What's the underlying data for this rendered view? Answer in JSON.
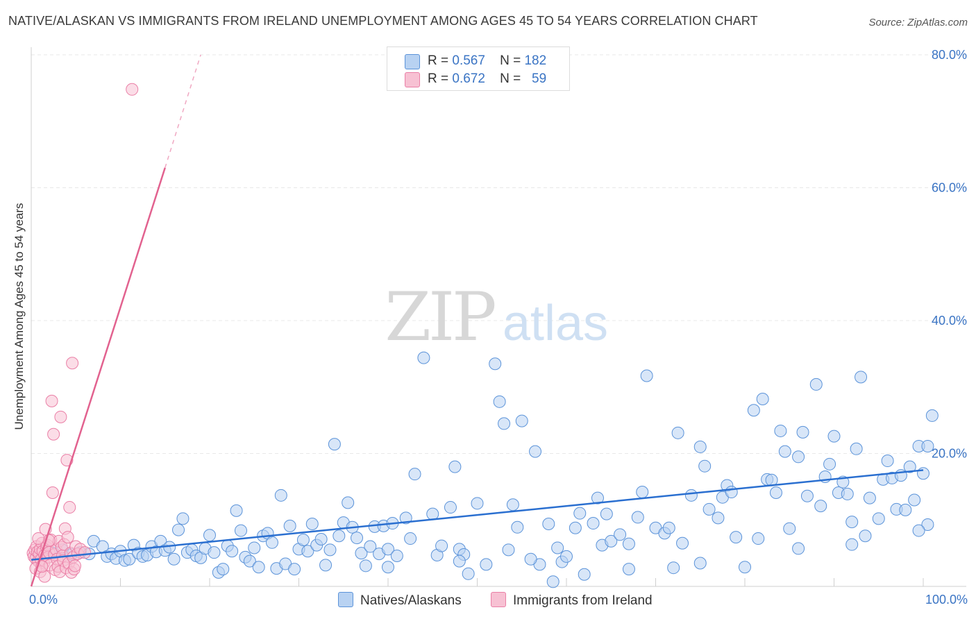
{
  "title": "NATIVE/ALASKAN VS IMMIGRANTS FROM IRELAND UNEMPLOYMENT AMONG AGES 45 TO 54 YEARS CORRELATION CHART",
  "source": "Source: ZipAtlas.com",
  "watermark": {
    "zip": "ZIP",
    "atlas": "atlas"
  },
  "legend": {
    "rows": [
      {
        "r_label": "R =",
        "r_value": "0.567",
        "n_label": "N =",
        "n_value": "182"
      },
      {
        "r_label": "R =",
        "r_value": "0.672",
        "n_label": "N =",
        "n_value": "59"
      }
    ]
  },
  "colors": {
    "blue_fill": "#b8d2f2",
    "blue_stroke": "#5b93d9",
    "blue_line": "#2a6fd0",
    "pink_fill": "#f7c1d3",
    "pink_stroke": "#ea7fa6",
    "pink_line": "#e2628f",
    "tick_label": "#3a74c4",
    "grid": "#e8e8e8"
  },
  "chart_data": {
    "type": "scatter",
    "title": "NATIVE/ALASKAN VS IMMIGRANTS FROM IRELAND UNEMPLOYMENT AMONG AGES 45 TO 54 YEARS CORRELATION CHART",
    "xlabel": "",
    "ylabel": "Unemployment Among Ages 45 to 54 years",
    "xlim": [
      0,
      100
    ],
    "ylim": [
      0,
      80
    ],
    "x_tick_labels": [
      {
        "value": 0,
        "label": "0.0%"
      },
      {
        "value": 100,
        "label": "100.0%"
      }
    ],
    "y_tick_labels": [
      {
        "value": 20,
        "label": "20.0%"
      },
      {
        "value": 40,
        "label": "40.0%"
      },
      {
        "value": 60,
        "label": "60.0%"
      },
      {
        "value": 80,
        "label": "80.0%"
      }
    ],
    "series": [
      {
        "name": "Natives/Alaskans",
        "R": 0.567,
        "N": 182,
        "trend": {
          "x0": 0,
          "y0": 4.0,
          "x1": 100,
          "y1": 17.5
        },
        "points": [
          [
            1.2,
            5.2
          ],
          [
            2.5,
            5.0
          ],
          [
            3.5,
            5.5
          ],
          [
            4.5,
            4.8
          ],
          [
            5.5,
            5.1
          ],
          [
            6.5,
            4.9
          ],
          [
            7.0,
            6.8
          ],
          [
            8.0,
            6.0
          ],
          [
            8.5,
            4.5
          ],
          [
            9.0,
            4.9
          ],
          [
            9.5,
            4.2
          ],
          [
            10.0,
            5.3
          ],
          [
            10.5,
            3.9
          ],
          [
            11.0,
            4.1
          ],
          [
            11.5,
            6.2
          ],
          [
            12.0,
            5.0
          ],
          [
            12.5,
            4.5
          ],
          [
            13.0,
            4.7
          ],
          [
            13.5,
            6.0
          ],
          [
            14.0,
            5.2
          ],
          [
            14.5,
            6.8
          ],
          [
            15.0,
            5.4
          ],
          [
            15.5,
            5.9
          ],
          [
            16.0,
            4.1
          ],
          [
            16.5,
            8.5
          ],
          [
            17.0,
            10.2
          ],
          [
            17.5,
            5.1
          ],
          [
            18.0,
            5.5
          ],
          [
            18.5,
            4.6
          ],
          [
            19.0,
            4.3
          ],
          [
            19.5,
            5.7
          ],
          [
            20.0,
            7.7
          ],
          [
            20.5,
            5.1
          ],
          [
            21.0,
            2.1
          ],
          [
            21.5,
            2.6
          ],
          [
            22.0,
            6.1
          ],
          [
            22.5,
            5.3
          ],
          [
            23.0,
            11.4
          ],
          [
            23.5,
            8.4
          ],
          [
            24.0,
            4.4
          ],
          [
            24.5,
            3.8
          ],
          [
            25.0,
            5.8
          ],
          [
            25.5,
            2.9
          ],
          [
            26.0,
            7.6
          ],
          [
            26.5,
            8.0
          ],
          [
            27.0,
            6.6
          ],
          [
            27.5,
            2.7
          ],
          [
            28.0,
            13.7
          ],
          [
            28.5,
            3.4
          ],
          [
            29.0,
            9.1
          ],
          [
            29.5,
            2.6
          ],
          [
            30.0,
            5.6
          ],
          [
            30.5,
            7.0
          ],
          [
            31.0,
            5.3
          ],
          [
            31.5,
            9.4
          ],
          [
            32.0,
            6.2
          ],
          [
            32.5,
            7.1
          ],
          [
            33.0,
            3.2
          ],
          [
            33.5,
            5.5
          ],
          [
            34.0,
            21.4
          ],
          [
            34.5,
            7.6
          ],
          [
            35.0,
            9.6
          ],
          [
            35.5,
            12.6
          ],
          [
            36.0,
            8.9
          ],
          [
            36.5,
            7.3
          ],
          [
            37.0,
            5.0
          ],
          [
            37.5,
            3.1
          ],
          [
            38.0,
            6.0
          ],
          [
            38.5,
            9.0
          ],
          [
            39.0,
            4.9
          ],
          [
            39.5,
            9.1
          ],
          [
            40.0,
            5.6
          ],
          [
            40.5,
            9.5
          ],
          [
            41.0,
            4.6
          ],
          [
            42.0,
            10.3
          ],
          [
            42.5,
            7.2
          ],
          [
            43.0,
            16.9
          ],
          [
            44.0,
            34.4
          ],
          [
            45.0,
            10.9
          ],
          [
            45.5,
            4.7
          ],
          [
            46.0,
            6.1
          ],
          [
            47.0,
            11.9
          ],
          [
            47.5,
            18.0
          ],
          [
            48.0,
            5.6
          ],
          [
            48.5,
            4.8
          ],
          [
            49.0,
            1.9
          ],
          [
            50.0,
            12.5
          ],
          [
            51.0,
            3.3
          ],
          [
            52.0,
            33.5
          ],
          [
            52.5,
            27.8
          ],
          [
            53.0,
            24.5
          ],
          [
            53.5,
            5.5
          ],
          [
            54.0,
            12.3
          ],
          [
            54.5,
            8.9
          ],
          [
            55.0,
            24.9
          ],
          [
            56.5,
            20.3
          ],
          [
            57.0,
            3.3
          ],
          [
            58.0,
            9.4
          ],
          [
            58.5,
            0.7
          ],
          [
            59.0,
            5.8
          ],
          [
            59.5,
            3.7
          ],
          [
            60.0,
            4.5
          ],
          [
            61.0,
            8.8
          ],
          [
            61.5,
            11.0
          ],
          [
            62.0,
            1.8
          ],
          [
            63.0,
            9.5
          ],
          [
            63.5,
            13.3
          ],
          [
            64.0,
            6.2
          ],
          [
            64.5,
            10.9
          ],
          [
            65.0,
            6.8
          ],
          [
            66.0,
            7.8
          ],
          [
            67.0,
            6.4
          ],
          [
            68.0,
            10.4
          ],
          [
            68.5,
            14.2
          ],
          [
            69.0,
            31.7
          ],
          [
            70.0,
            8.8
          ],
          [
            71.0,
            8.0
          ],
          [
            71.5,
            8.8
          ],
          [
            72.0,
            2.8
          ],
          [
            72.5,
            23.1
          ],
          [
            73.0,
            6.5
          ],
          [
            74.0,
            13.7
          ],
          [
            75.0,
            21.0
          ],
          [
            75.5,
            18.1
          ],
          [
            76.0,
            11.6
          ],
          [
            77.0,
            10.3
          ],
          [
            77.5,
            13.4
          ],
          [
            78.0,
            15.2
          ],
          [
            78.5,
            14.2
          ],
          [
            79.0,
            7.4
          ],
          [
            80.0,
            2.9
          ],
          [
            81.0,
            26.5
          ],
          [
            81.5,
            7.2
          ],
          [
            82.0,
            28.2
          ],
          [
            82.5,
            16.1
          ],
          [
            83.0,
            16.0
          ],
          [
            83.5,
            14.1
          ],
          [
            84.0,
            23.4
          ],
          [
            84.5,
            20.3
          ],
          [
            85.0,
            8.7
          ],
          [
            86.0,
            19.5
          ],
          [
            86.5,
            23.2
          ],
          [
            87.0,
            13.6
          ],
          [
            88.0,
            30.4
          ],
          [
            88.5,
            12.1
          ],
          [
            89.0,
            16.5
          ],
          [
            89.5,
            18.4
          ],
          [
            90.0,
            22.6
          ],
          [
            90.5,
            14.1
          ],
          [
            91.0,
            15.7
          ],
          [
            91.5,
            13.9
          ],
          [
            92.0,
            9.7
          ],
          [
            92.5,
            20.7
          ],
          [
            93.0,
            31.5
          ],
          [
            93.5,
            7.6
          ],
          [
            94.0,
            13.3
          ],
          [
            95.0,
            10.2
          ],
          [
            95.5,
            16.1
          ],
          [
            96.0,
            18.9
          ],
          [
            96.5,
            16.3
          ],
          [
            97.0,
            11.6
          ],
          [
            97.5,
            16.7
          ],
          [
            98.0,
            11.5
          ],
          [
            98.5,
            18.0
          ],
          [
            99.0,
            13.0
          ],
          [
            99.5,
            21.1
          ],
          [
            100.0,
            17.0
          ],
          [
            100.5,
            21.1
          ],
          [
            101.0,
            25.7
          ],
          [
            100.5,
            9.3
          ],
          [
            99.5,
            8.4
          ],
          [
            92.0,
            6.3
          ],
          [
            86.0,
            5.7
          ],
          [
            75.0,
            3.5
          ],
          [
            67.0,
            2.6
          ],
          [
            56.0,
            4.1
          ],
          [
            48.0,
            3.8
          ],
          [
            40.0,
            2.9
          ]
        ]
      },
      {
        "name": "Immigrants from Ireland",
        "R": 0.672,
        "N": 59,
        "trend": {
          "x0": 0,
          "y0": 0,
          "x1": 15,
          "y1": 63,
          "dash_to_x": 19,
          "dash_to_y": 80
        },
        "points": [
          [
            0.2,
            5.0
          ],
          [
            0.3,
            4.5
          ],
          [
            0.4,
            5.5
          ],
          [
            0.5,
            4.2
          ],
          [
            0.6,
            6.0
          ],
          [
            0.7,
            5.2
          ],
          [
            0.8,
            3.8
          ],
          [
            0.9,
            4.9
          ],
          [
            1.0,
            5.6
          ],
          [
            1.1,
            4.0
          ],
          [
            1.2,
            6.5
          ],
          [
            1.3,
            5.3
          ],
          [
            1.4,
            3.5
          ],
          [
            1.5,
            4.7
          ],
          [
            1.6,
            8.6
          ],
          [
            1.7,
            5.9
          ],
          [
            1.8,
            6.2
          ],
          [
            1.9,
            4.4
          ],
          [
            2.0,
            5.1
          ],
          [
            2.1,
            3.2
          ],
          [
            2.2,
            7.0
          ],
          [
            2.3,
            27.9
          ],
          [
            2.4,
            14.1
          ],
          [
            2.5,
            22.9
          ],
          [
            2.6,
            4.8
          ],
          [
            2.7,
            2.5
          ],
          [
            2.8,
            5.5
          ],
          [
            2.9,
            4.1
          ],
          [
            3.0,
            3.0
          ],
          [
            3.1,
            6.8
          ],
          [
            3.2,
            2.2
          ],
          [
            3.3,
            25.5
          ],
          [
            3.4,
            5.9
          ],
          [
            3.5,
            4.6
          ],
          [
            3.6,
            3.9
          ],
          [
            3.7,
            6.3
          ],
          [
            3.8,
            8.7
          ],
          [
            3.9,
            2.8
          ],
          [
            4.0,
            19.0
          ],
          [
            4.1,
            7.4
          ],
          [
            4.2,
            3.5
          ],
          [
            4.3,
            11.9
          ],
          [
            4.4,
            5.0
          ],
          [
            4.5,
            2.1
          ],
          [
            4.6,
            33.6
          ],
          [
            4.7,
            4.4
          ],
          [
            4.8,
            2.6
          ],
          [
            4.9,
            3.1
          ],
          [
            5.0,
            6.0
          ],
          [
            5.2,
            4.9
          ],
          [
            5.5,
            5.6
          ],
          [
            6.0,
            5.1
          ],
          [
            0.5,
            2.7
          ],
          [
            1.0,
            2.2
          ],
          [
            1.5,
            1.5
          ],
          [
            2.0,
            6.9
          ],
          [
            0.8,
            7.2
          ],
          [
            1.2,
            3.0
          ],
          [
            11.3,
            74.8
          ]
        ]
      }
    ]
  },
  "bottom_legend": [
    {
      "label": "Natives/Alaskans"
    },
    {
      "label": "Immigrants from Ireland"
    }
  ]
}
